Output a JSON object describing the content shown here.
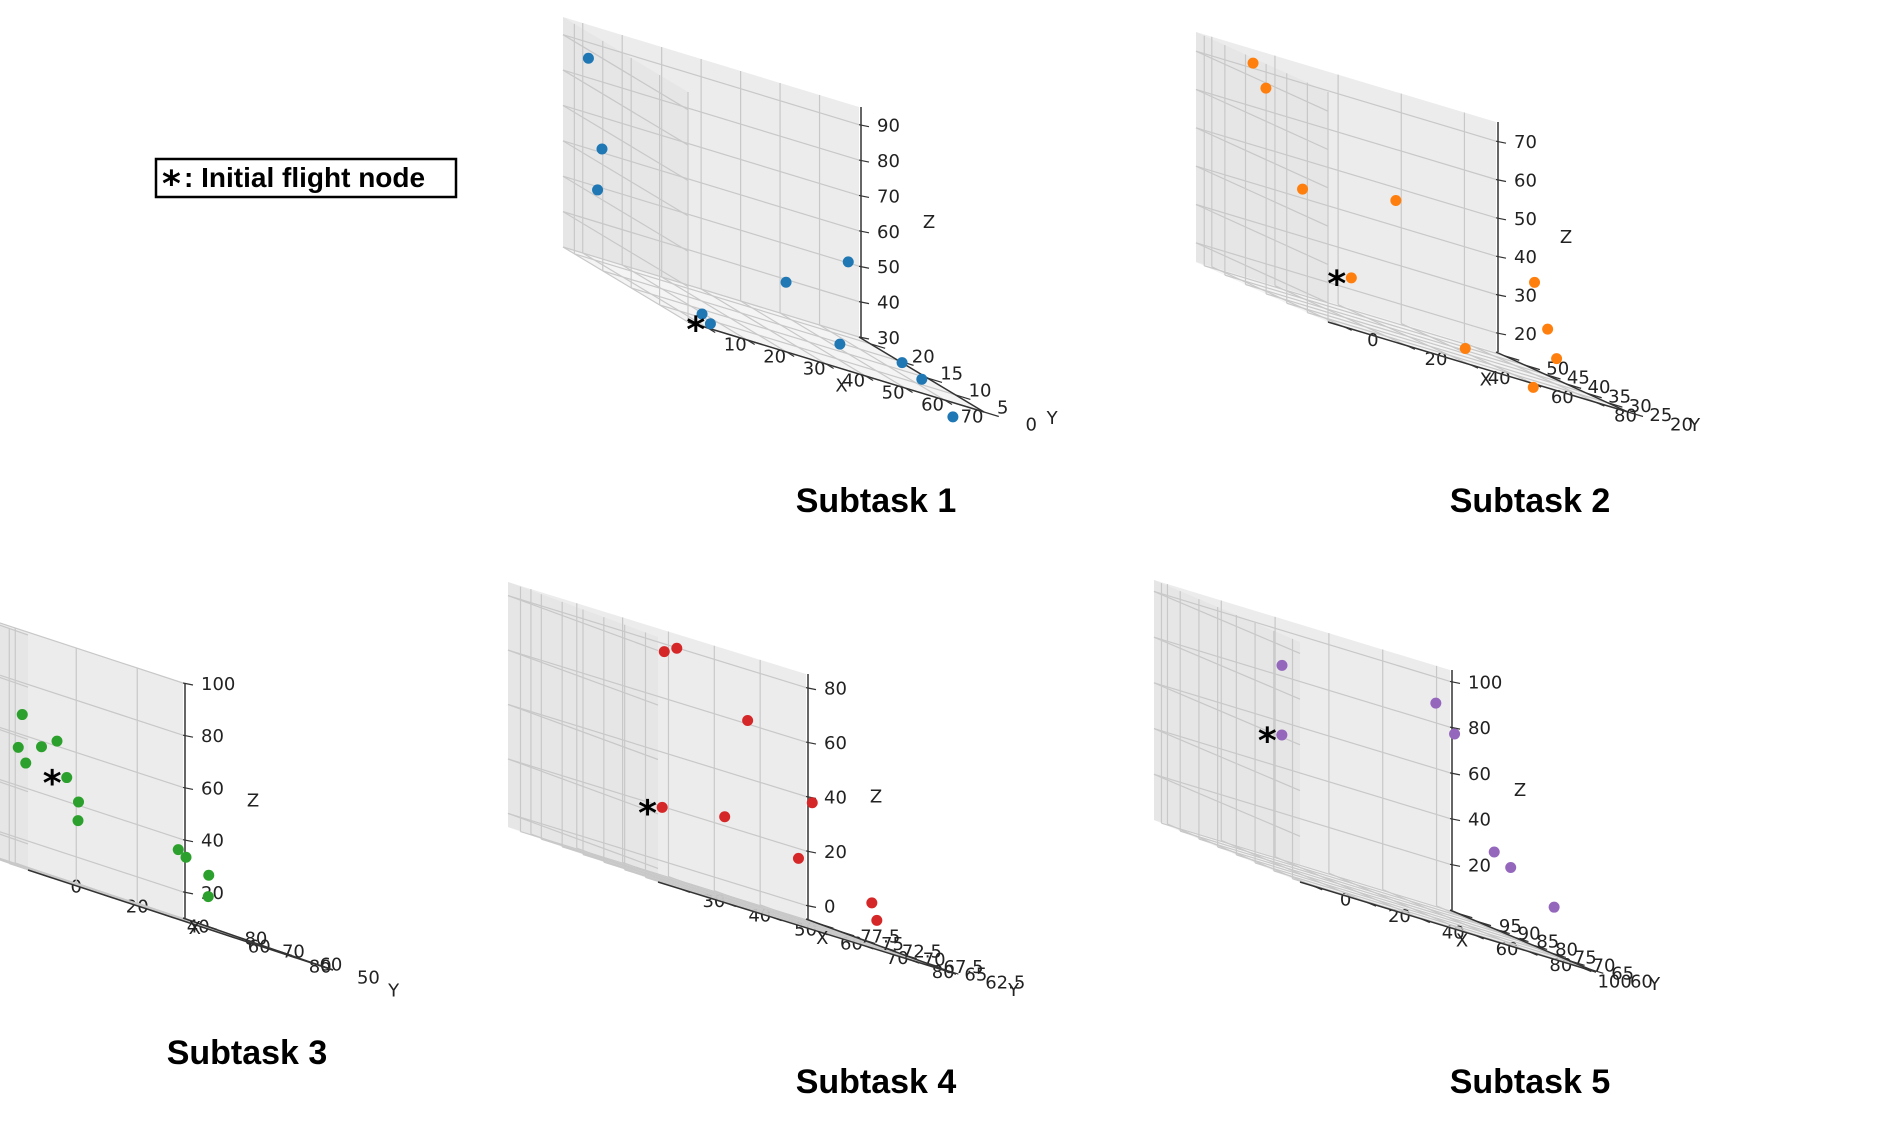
{
  "legend": {
    "symbol": "*",
    "text": ": Initial flight node"
  },
  "chart_data": [
    {
      "type": "scatter",
      "title": "Subtask 1",
      "color": "#1f77b4",
      "xlabel": "X",
      "ylabel": "Y",
      "zlabel": "Z",
      "xlim": [
        5,
        80
      ],
      "ylim": [
        0,
        22
      ],
      "zlim": [
        30,
        95
      ],
      "xticks": [
        10,
        20,
        30,
        40,
        50,
        60,
        70
      ],
      "yticks": [
        0,
        5,
        10,
        15,
        20
      ],
      "zticks": [
        30,
        40,
        50,
        60,
        70,
        80,
        90
      ],
      "points": [
        [
          10,
          1,
          33
        ],
        [
          15,
          3,
          30
        ],
        [
          10,
          21,
          86
        ],
        [
          12,
          20,
          62
        ],
        [
          8,
          18,
          51
        ],
        [
          60,
          10,
          56
        ],
        [
          50,
          14,
          43
        ],
        [
          55,
          8,
          33
        ],
        [
          65,
          4,
          35
        ],
        [
          70,
          4,
          32
        ],
        [
          75,
          2,
          25
        ]
      ],
      "initial_index": 1
    },
    {
      "type": "scatter",
      "title": "Subtask 2",
      "color": "#ff7f0e",
      "xlabel": "X",
      "ylabel": "Y",
      "zlabel": "Z",
      "xlim": [
        -5,
        90
      ],
      "ylim": [
        20,
        52
      ],
      "zlim": [
        15,
        75
      ],
      "xticks": [
        0,
        20,
        40,
        60,
        80
      ],
      "yticks": [
        20,
        25,
        30,
        35,
        40,
        45,
        50
      ],
      "zticks": [
        20,
        30,
        40,
        50,
        60,
        70
      ],
      "points": [
        [
          5,
          22,
          28
        ],
        [
          0,
          42,
          73
        ],
        [
          8,
          45,
          67
        ],
        [
          0,
          30,
          46
        ],
        [
          40,
          38,
          49
        ],
        [
          80,
          35,
          39
        ],
        [
          75,
          28,
          29
        ],
        [
          70,
          22,
          23
        ],
        [
          45,
          25,
          18
        ],
        [
          60,
          20,
          14
        ]
      ],
      "initial_index": 0
    },
    {
      "type": "scatter",
      "title": "Subtask 3",
      "color": "#2ca02c",
      "xlabel": "X",
      "ylabel": "Y",
      "zlabel": "Z",
      "xlim": [
        -5,
        95
      ],
      "ylim": [
        45,
        85
      ],
      "zlim": [
        10,
        100
      ],
      "xticks": [
        0,
        20,
        40,
        60,
        80
      ],
      "yticks": [
        50,
        60,
        70,
        80
      ],
      "zticks": [
        20,
        40,
        60,
        80,
        100
      ],
      "points": [
        [
          20,
          55,
          50
        ],
        [
          20,
          52,
          35
        ],
        [
          30,
          75,
          68
        ],
        [
          25,
          72,
          55
        ],
        [
          25,
          70,
          50
        ],
        [
          40,
          78,
          58
        ],
        [
          50,
          82,
          62
        ],
        [
          30,
          60,
          42
        ],
        [
          75,
          70,
          36
        ],
        [
          80,
          72,
          34
        ],
        [
          85,
          70,
          30
        ],
        [
          75,
          62,
          22
        ]
      ],
      "initial_index": 0
    },
    {
      "type": "scatter",
      "title": "Subtask 4",
      "color": "#d62728",
      "xlabel": "X",
      "ylabel": "Y",
      "zlabel": "Z",
      "xlim": [
        25,
        90
      ],
      "ylim": [
        61,
        79
      ],
      "zlim": [
        -5,
        85
      ],
      "xticks": [
        30,
        40,
        50,
        60,
        70,
        80
      ],
      "yticks": [
        62.5,
        65.0,
        67.5,
        70.0,
        72.5,
        75.0,
        77.5
      ],
      "zticks": [
        0,
        20,
        40,
        60,
        80
      ],
      "points": [
        [
          35,
          66,
          22
        ],
        [
          45,
          64,
          26
        ],
        [
          30,
          63,
          80
        ],
        [
          60,
          78,
          80
        ],
        [
          70,
          75,
          62
        ],
        [
          75,
          70,
          40
        ],
        [
          72,
          70,
          18
        ],
        [
          88,
          70,
          10
        ],
        [
          80,
          65,
          5
        ]
      ],
      "initial_index": 0
    },
    {
      "type": "scatter",
      "title": "Subtask 5",
      "color": "#9467bd",
      "xlabel": "X",
      "ylabel": "Y",
      "zlabel": "Z",
      "xlim": [
        -5,
        105
      ],
      "ylim": [
        58,
        97
      ],
      "zlim": [
        0,
        105
      ],
      "xticks": [
        0,
        20,
        40,
        60,
        80,
        100
      ],
      "yticks": [
        60,
        65,
        70,
        75,
        80,
        85,
        90,
        95
      ],
      "zticks": [
        20,
        40,
        60,
        80,
        100
      ],
      "points": [
        [
          30,
          88,
          56
        ],
        [
          5,
          70,
          90
        ],
        [
          90,
          90,
          90
        ],
        [
          90,
          85,
          80
        ],
        [
          95,
          78,
          35
        ],
        [
          90,
          70,
          32
        ],
        [
          95,
          62,
          22
        ]
      ],
      "initial_index": 0
    }
  ]
}
